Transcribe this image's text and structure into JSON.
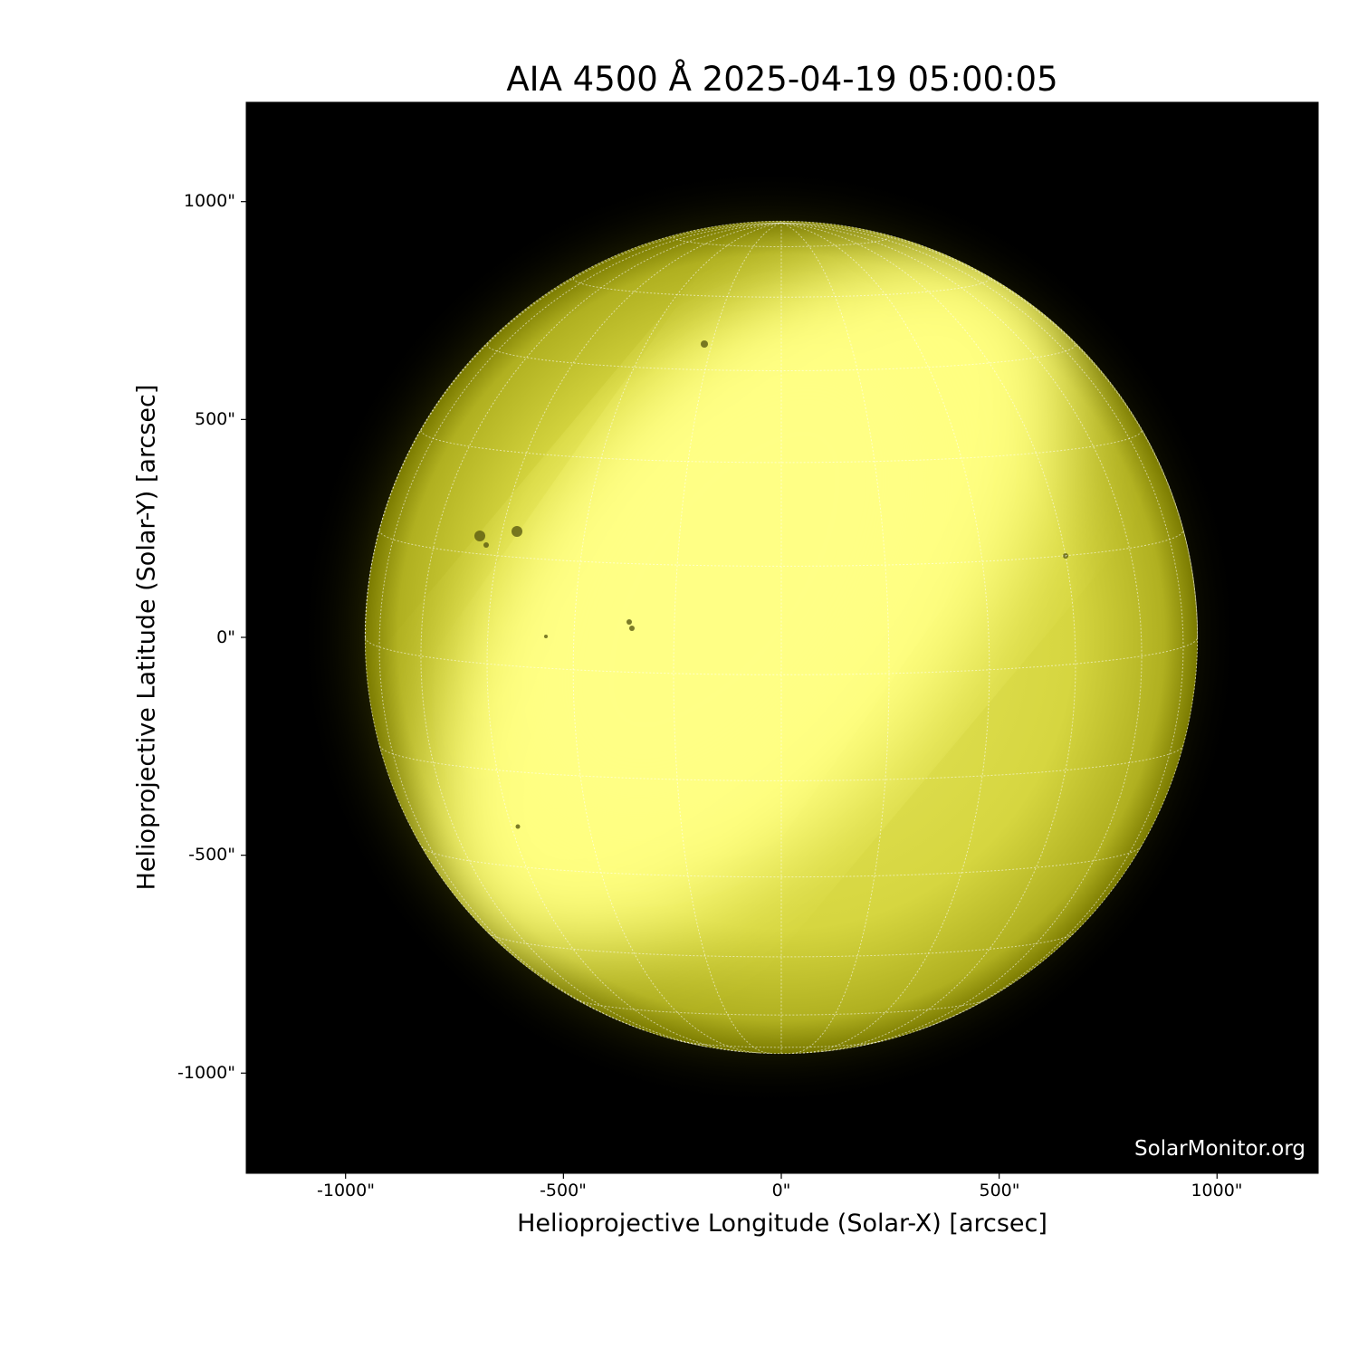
{
  "title": "AIA 4500 Å 2025-04-19 05:00:05",
  "xlabel": "Helioprojective Longitude (Solar-X) [arcsec]",
  "ylabel": "Helioprojective Latitude (Solar-Y) [arcsec]",
  "xticks": [
    "-1000\"",
    "-500\"",
    "0\"",
    "500\"",
    "1000\""
  ],
  "yticks": [
    "1000\"",
    "500\"",
    "0\"",
    "-500\"",
    "-1000\""
  ],
  "xtick_values": [
    -1000,
    -500,
    0,
    500,
    1000
  ],
  "ytick_values": [
    1000,
    500,
    0,
    -500,
    -1000
  ],
  "axis_range_arcsec": {
    "x": [
      -1230,
      1230
    ],
    "y": [
      -1230,
      1230
    ]
  },
  "solar_radius_arcsec": 955,
  "watermark": "SolarMonitor.org",
  "colors": {
    "background": "#000000",
    "disk_bright": "#ffff80",
    "disk_limb": "#8a8a00",
    "grid": "#ffffff"
  }
}
